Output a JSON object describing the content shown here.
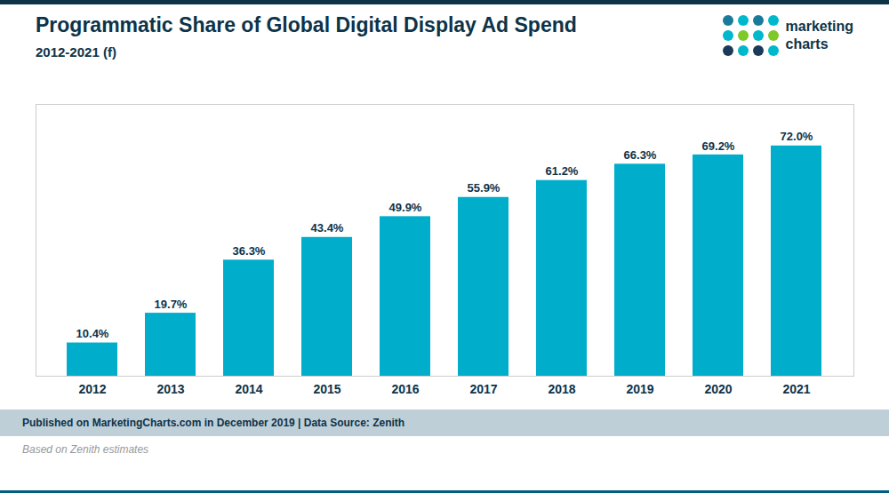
{
  "chart_data": {
    "type": "bar",
    "title": "Programmatic Share of Global Digital Display Ad Spend",
    "subtitle": "2012-2021 (f)",
    "categories": [
      "2012",
      "2013",
      "2014",
      "2015",
      "2016",
      "2017",
      "2018",
      "2019",
      "2020",
      "2021"
    ],
    "values": [
      10.4,
      19.7,
      36.3,
      43.4,
      49.9,
      55.9,
      61.2,
      66.3,
      69.2,
      72.0
    ],
    "value_labels": [
      "10.4%",
      "19.7%",
      "36.3%",
      "43.4%",
      "49.9%",
      "55.9%",
      "61.2%",
      "66.3%",
      "69.2%",
      "72.0%"
    ],
    "data_labels": true,
    "color": "#00AECC",
    "ylim": [
      0,
      85
    ],
    "tick_labels": "x",
    "grid": false,
    "annotations": [
      "Published on MarketingCharts.com in December 2019 | Data Source: Zenith",
      "Based on Zenith estimates",
      "marketing",
      "charts"
    ]
  }
}
